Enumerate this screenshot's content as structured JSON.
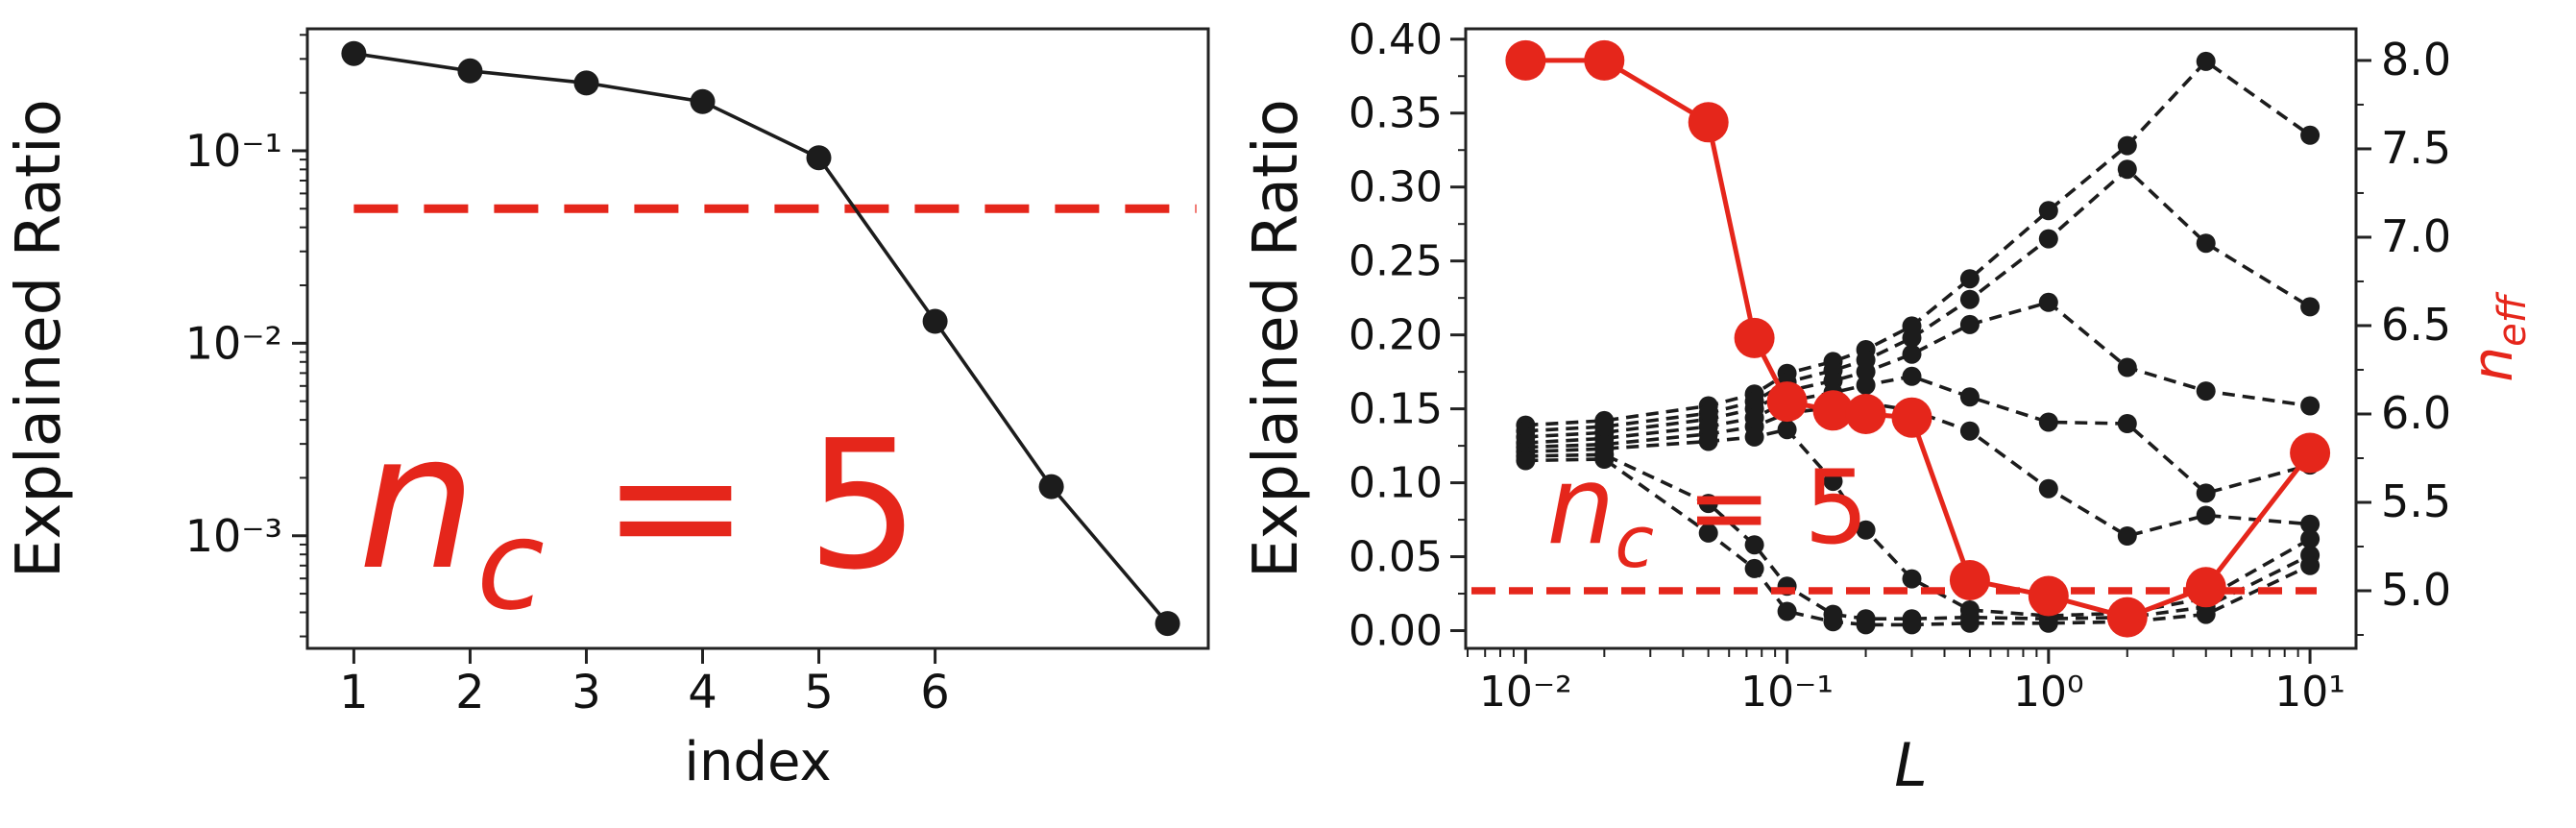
{
  "figure": {
    "background": "#ffffff",
    "colors": {
      "red": "#e5261b",
      "black": "#1c1c1c",
      "text": "#111111"
    }
  },
  "chart_data": [
    {
      "id": "scree-plot",
      "type": "line",
      "title": "",
      "xlabel": "index",
      "ylabel": "Explained Ratio",
      "x_scale": "linear",
      "y_scale": "log",
      "xlim": [
        0.6,
        8.35
      ],
      "ylim": [
        0.00026,
        0.43
      ],
      "grid": false,
      "legend": "none",
      "x_ticks": [
        {
          "value": 1,
          "label": "1"
        },
        {
          "value": 2,
          "label": "2"
        },
        {
          "value": 3,
          "label": "3"
        },
        {
          "value": 4,
          "label": "4"
        },
        {
          "value": 5,
          "label": "5"
        },
        {
          "value": 6,
          "label": "6"
        }
      ],
      "y_ticks": [
        {
          "value": 0.1,
          "label": "10⁻¹"
        },
        {
          "value": 0.01,
          "label": "10⁻²"
        },
        {
          "value": 0.001,
          "label": "10⁻³"
        }
      ],
      "series": [
        {
          "name": "explained-ratio",
          "color": "#1c1c1c",
          "line_style": "solid",
          "marker": "circle",
          "x": [
            1,
            2,
            3,
            4,
            5,
            6,
            7,
            8
          ],
          "y": [
            0.32,
            0.26,
            0.225,
            0.18,
            0.092,
            0.013,
            0.0018,
            0.00035
          ]
        }
      ],
      "threshold_line": {
        "y": 0.05,
        "color": "#e5261b",
        "style": "dashed"
      },
      "annotation": {
        "text": "n_c = 5",
        "base": "n",
        "sub": "c",
        "rest": " = 5",
        "color": "#e5261b"
      }
    },
    {
      "id": "l-sweep-plot",
      "type": "line",
      "title": "",
      "xlabel": "L",
      "ylabel_left": "Explained Ratio",
      "ylabel_right": "n_eff",
      "ylabel_right_parts": {
        "base": "n",
        "sub": "eff"
      },
      "x_scale": "log",
      "xlim": [
        0.0059,
        15
      ],
      "ylim_left": [
        -0.012,
        0.407
      ],
      "ylim_right": [
        4.674,
        8.179
      ],
      "grid": false,
      "legend": "none",
      "x_ticks": [
        {
          "value": 0.01,
          "label": "10⁻²"
        },
        {
          "value": 0.1,
          "label": "10⁻¹"
        },
        {
          "value": 1,
          "label": "10⁰"
        },
        {
          "value": 10,
          "label": "10¹"
        }
      ],
      "y_ticks_left": [
        {
          "value": 0.0,
          "label": "0.00"
        },
        {
          "value": 0.05,
          "label": "0.05"
        },
        {
          "value": 0.1,
          "label": "0.10"
        },
        {
          "value": 0.15,
          "label": "0.15"
        },
        {
          "value": 0.2,
          "label": "0.20"
        },
        {
          "value": 0.25,
          "label": "0.25"
        },
        {
          "value": 0.3,
          "label": "0.30"
        },
        {
          "value": 0.35,
          "label": "0.35"
        },
        {
          "value": 0.4,
          "label": "0.40"
        }
      ],
      "y_ticks_right": [
        {
          "value": 5.0,
          "label": "5.0"
        },
        {
          "value": 5.5,
          "label": "5.5"
        },
        {
          "value": 6.0,
          "label": "6.0"
        },
        {
          "value": 6.5,
          "label": "6.5"
        },
        {
          "value": 7.0,
          "label": "7.0"
        },
        {
          "value": 7.5,
          "label": "7.5"
        },
        {
          "value": 8.0,
          "label": "8.0"
        }
      ],
      "x": [
        0.01,
        0.02,
        0.05,
        0.075,
        0.1,
        0.15,
        0.2,
        0.3,
        0.5,
        1,
        2,
        4,
        10
      ],
      "black_series": [
        {
          "name": "component-1",
          "values": [
            0.139,
            0.142,
            0.152,
            0.16,
            0.174,
            0.182,
            0.19,
            0.206,
            0.238,
            0.284,
            0.328,
            0.385,
            0.335
          ]
        },
        {
          "name": "component-2",
          "values": [
            0.135,
            0.138,
            0.147,
            0.155,
            0.168,
            0.176,
            0.183,
            0.198,
            0.224,
            0.265,
            0.312,
            0.262,
            0.219
          ]
        },
        {
          "name": "component-3",
          "values": [
            0.131,
            0.134,
            0.143,
            0.15,
            0.162,
            0.169,
            0.175,
            0.187,
            0.207,
            0.222,
            0.178,
            0.162,
            0.152
          ]
        },
        {
          "name": "component-4",
          "values": [
            0.127,
            0.13,
            0.138,
            0.144,
            0.155,
            0.161,
            0.166,
            0.172,
            0.158,
            0.141,
            0.14,
            0.093,
            0.112
          ]
        },
        {
          "name": "component-5",
          "values": [
            0.124,
            0.126,
            0.133,
            0.138,
            0.147,
            0.151,
            0.154,
            0.149,
            0.135,
            0.096,
            0.064,
            0.078,
            0.072
          ]
        },
        {
          "name": "component-6",
          "values": [
            0.121,
            0.123,
            0.128,
            0.131,
            0.136,
            0.101,
            0.068,
            0.035,
            0.014,
            0.01,
            0.012,
            0.022,
            0.062
          ]
        },
        {
          "name": "component-7",
          "values": [
            0.118,
            0.119,
            0.086,
            0.058,
            0.03,
            0.011,
            0.008,
            0.008,
            0.009,
            0.008,
            0.009,
            0.016,
            0.051
          ]
        },
        {
          "name": "component-8",
          "values": [
            0.115,
            0.116,
            0.066,
            0.042,
            0.013,
            0.006,
            0.004,
            0.004,
            0.005,
            0.005,
            0.006,
            0.011,
            0.044
          ]
        }
      ],
      "red_series": {
        "name": "n-eff",
        "axis": "right",
        "color": "#e5261b",
        "values": [
          8.0,
          8.0,
          7.65,
          6.43,
          6.07,
          6.02,
          6.0,
          5.98,
          5.06,
          4.97,
          4.85,
          5.02,
          5.78
        ]
      },
      "threshold_line": {
        "y_right": 5.0,
        "color": "#e5261b",
        "style": "dashed"
      },
      "annotation": {
        "text": "n_c = 5",
        "base": "n",
        "sub": "c",
        "rest": " = 5",
        "color": "#e5261b"
      }
    }
  ]
}
